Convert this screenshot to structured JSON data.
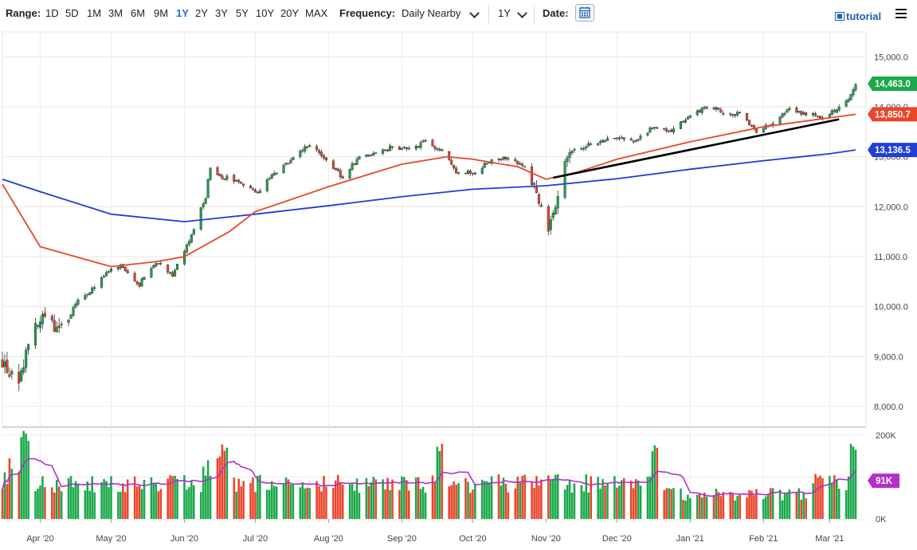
{
  "toolbar": {
    "range_label": "Range:",
    "ranges": [
      "1D",
      "5D",
      "1M",
      "3M",
      "6M",
      "9M",
      "1Y",
      "2Y",
      "3Y",
      "5Y",
      "10Y",
      "20Y",
      "MAX"
    ],
    "active_range": "1Y",
    "frequency_label": "Frequency:",
    "frequency_value": "Daily Nearby",
    "period_value": "1Y",
    "date_label": "Date:",
    "tutorial_label": "tutorial",
    "accent_color": "#1a6fd6"
  },
  "chart_data": {
    "type": "candlestick",
    "price_axis": {
      "ticks": [
        8000,
        9000,
        10000,
        11000,
        12000,
        13000,
        14000,
        15000
      ],
      "tick_labels": [
        "8,000.0",
        "9,000.0",
        "10,000.0",
        "11,000.0",
        "12,000.0",
        "13,000.0",
        "14,000.0",
        "15,000.0"
      ],
      "range": [
        7600,
        15500
      ]
    },
    "volume_axis": {
      "ticks": [
        0,
        100000,
        200000
      ],
      "tick_labels": [
        "0K",
        "",
        "200K"
      ],
      "range": [
        0,
        215000
      ]
    },
    "x_axis": {
      "start": "2020-03-16",
      "end": "2021-03-12",
      "month_ticks": [
        {
          "date": "2020-04-01",
          "label": "Apr '20"
        },
        {
          "date": "2020-05-01",
          "label": "May '20"
        },
        {
          "date": "2020-06-01",
          "label": "Jun '20"
        },
        {
          "date": "2020-07-01",
          "label": "Jul '20"
        },
        {
          "date": "2020-08-01",
          "label": "Aug '20"
        },
        {
          "date": "2020-09-01",
          "label": "Sep '20"
        },
        {
          "date": "2020-10-01",
          "label": "Oct '20"
        },
        {
          "date": "2020-11-01",
          "label": "Nov '20"
        },
        {
          "date": "2020-12-01",
          "label": "Dec '20"
        },
        {
          "date": "2021-01-01",
          "label": "Jan '21"
        },
        {
          "date": "2021-02-01",
          "label": "Feb '21"
        },
        {
          "date": "2021-03-01",
          "label": "Mar '21"
        }
      ]
    },
    "close_path": [
      [
        "2020-03-16",
        8900
      ],
      [
        "2020-03-23",
        8350
      ],
      [
        "2020-03-27",
        9350
      ],
      [
        "2020-04-03",
        9800
      ],
      [
        "2020-04-09",
        9500
      ],
      [
        "2020-04-17",
        10100
      ],
      [
        "2020-04-24",
        10400
      ],
      [
        "2020-04-30",
        10700
      ],
      [
        "2020-05-05",
        10800
      ],
      [
        "2020-05-13",
        10450
      ],
      [
        "2020-05-20",
        10900
      ],
      [
        "2020-05-27",
        10650
      ],
      [
        "2020-06-03",
        11300
      ],
      [
        "2020-06-10",
        12200
      ],
      [
        "2020-06-12",
        12800
      ],
      [
        "2020-06-17",
        12600
      ],
      [
        "2020-06-24",
        12500
      ],
      [
        "2020-07-02",
        12300
      ],
      [
        "2020-07-10",
        12700
      ],
      [
        "2020-07-17",
        12950
      ],
      [
        "2020-07-24",
        13250
      ],
      [
        "2020-07-31",
        12900
      ],
      [
        "2020-08-07",
        12600
      ],
      [
        "2020-08-14",
        13000
      ],
      [
        "2020-08-21",
        13100
      ],
      [
        "2020-08-28",
        13200
      ],
      [
        "2020-09-04",
        13150
      ],
      [
        "2020-09-11",
        13300
      ],
      [
        "2020-09-18",
        13100
      ],
      [
        "2020-09-25",
        12650
      ],
      [
        "2020-10-02",
        12700
      ],
      [
        "2020-10-09",
        12950
      ],
      [
        "2020-10-16",
        13000
      ],
      [
        "2020-10-23",
        12800
      ],
      [
        "2020-10-28",
        12300
      ],
      [
        "2020-11-02",
        11500
      ],
      [
        "2020-11-05",
        12000
      ],
      [
        "2020-11-09",
        13000
      ],
      [
        "2020-11-16",
        13200
      ],
      [
        "2020-11-24",
        13300
      ],
      [
        "2020-12-01",
        13400
      ],
      [
        "2020-12-09",
        13300
      ],
      [
        "2020-12-16",
        13600
      ],
      [
        "2020-12-23",
        13500
      ],
      [
        "2020-12-31",
        13800
      ],
      [
        "2021-01-08",
        14000
      ],
      [
        "2021-01-15",
        13900
      ],
      [
        "2021-01-22",
        13850
      ],
      [
        "2021-01-29",
        13500
      ],
      [
        "2021-02-05",
        13700
      ],
      [
        "2021-02-12",
        14000
      ],
      [
        "2021-02-19",
        13850
      ],
      [
        "2021-02-26",
        13800
      ],
      [
        "2021-03-04",
        13950
      ],
      [
        "2021-03-09",
        14150
      ],
      [
        "2021-03-12",
        14463
      ]
    ],
    "series": [
      {
        "name": "",
        "kind": "moving-average",
        "color": "#1f3fd6",
        "points": [
          [
            "2020-03-16",
            12550
          ],
          [
            "2020-04-01",
            12300
          ],
          [
            "2020-05-01",
            11850
          ],
          [
            "2020-06-01",
            11700
          ],
          [
            "2020-07-01",
            11850
          ],
          [
            "2020-08-01",
            12020
          ],
          [
            "2020-09-01",
            12200
          ],
          [
            "2020-10-01",
            12350
          ],
          [
            "2020-11-01",
            12420
          ],
          [
            "2020-12-01",
            12560
          ],
          [
            "2021-01-01",
            12750
          ],
          [
            "2021-02-01",
            12920
          ],
          [
            "2021-03-01",
            13060
          ],
          [
            "2021-03-12",
            13136.5
          ]
        ],
        "last_value": 13136.5,
        "last_label": "13,136.5"
      },
      {
        "name": "",
        "kind": "moving-average",
        "color": "#e8462c",
        "points": [
          [
            "2020-03-16",
            12450
          ],
          [
            "2020-04-01",
            11200
          ],
          [
            "2020-05-01",
            10800
          ],
          [
            "2020-05-20",
            10900
          ],
          [
            "2020-06-01",
            11000
          ],
          [
            "2020-06-20",
            11500
          ],
          [
            "2020-07-01",
            11900
          ],
          [
            "2020-08-01",
            12400
          ],
          [
            "2020-09-01",
            12850
          ],
          [
            "2020-09-20",
            13000
          ],
          [
            "2020-10-01",
            12950
          ],
          [
            "2020-10-20",
            12800
          ],
          [
            "2020-11-01",
            12550
          ],
          [
            "2020-11-15",
            12700
          ],
          [
            "2020-12-01",
            12950
          ],
          [
            "2021-01-01",
            13300
          ],
          [
            "2021-02-01",
            13600
          ],
          [
            "2021-03-12",
            13850.7
          ]
        ],
        "last_value": 13850.7,
        "last_label": "13,850.7"
      },
      {
        "name": "",
        "kind": "price",
        "color": "#1aa84a",
        "last_value": 14463.0,
        "last_label": "14,463.0"
      }
    ],
    "trendline": {
      "color": "#000000",
      "from": [
        "2020-11-04",
        12580
      ],
      "to": [
        "2021-03-05",
        13750
      ]
    },
    "volume": {
      "avg_label": "91K",
      "avg_value": 91000,
      "avg_color": "#b030c8",
      "up_color": "#1aa84a",
      "down_color": "#e8462c",
      "highlight_color": "#1f3fd6"
    },
    "grid": true
  }
}
